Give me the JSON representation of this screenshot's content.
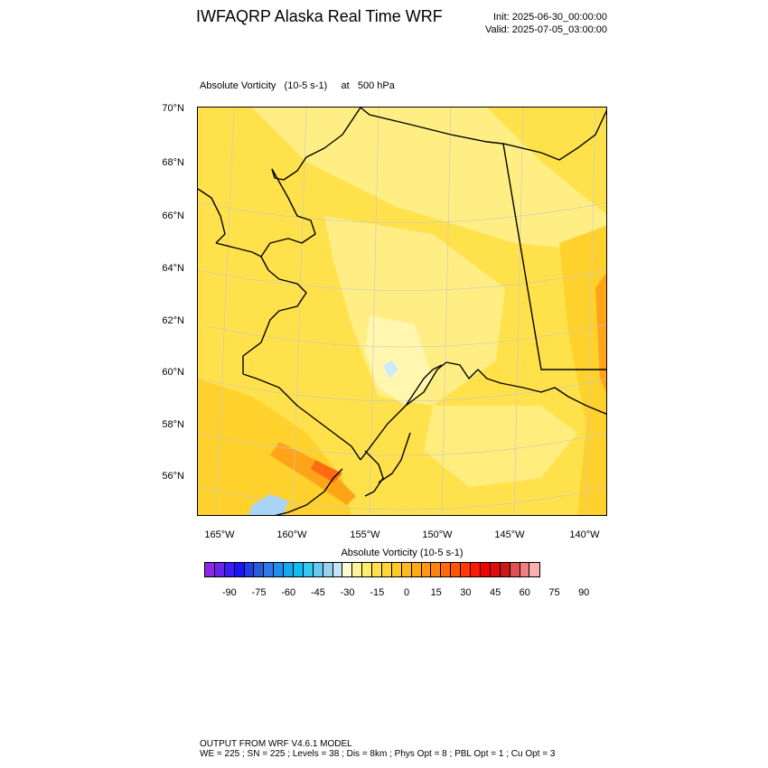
{
  "header": {
    "title": "IWFAQRP Alaska Real Time WRF",
    "init": "Init: 2025-06-30_00:00:00",
    "valid": "Valid: 2025-07-05_03:00:00"
  },
  "map": {
    "subtitle": "Absolute Vorticity   (10-5 s-1)     at   500 hPa",
    "lat_labels": [
      "70°N",
      "68°N",
      "66°N",
      "64°N",
      "62°N",
      "60°N",
      "58°N",
      "56°N"
    ],
    "lon_labels": [
      "165°W",
      "160°W",
      "155°W",
      "150°W",
      "145°W",
      "140°W"
    ],
    "field_colors": {
      "background": "#ffe14b",
      "light": "#fff08a",
      "pale": "#fff6b0",
      "gold": "#ffd12c",
      "orange": "#ffa319",
      "red_orange": "#ff6b12",
      "ice_blue": "#cfe9ff",
      "water_blue": "#a9d4f5",
      "grid": "#c8c8c8",
      "coast": "#000000"
    }
  },
  "legend": {
    "title": "Absolute Vorticity  (10-5 s-1)",
    "labels": [
      "-90",
      "-75",
      "-60",
      "-45",
      "-30",
      "-15",
      "0",
      "15",
      "30",
      "45",
      "60",
      "75",
      "90"
    ],
    "colors": [
      "#8a28e8",
      "#6a24f0",
      "#3d1cf7",
      "#1c14f8",
      "#1f3fe8",
      "#2a5bd8",
      "#3178ea",
      "#1e8ef0",
      "#16a8f0",
      "#0ebef2",
      "#36c8f5",
      "#68c8ee",
      "#97d3f0",
      "#c2e6f8",
      "#fffbd0",
      "#fff39a",
      "#ffec70",
      "#ffe14b",
      "#ffd633",
      "#ffc926",
      "#ffba1e",
      "#ffa917",
      "#ff9712",
      "#ff830e",
      "#ff6b0b",
      "#ff5508",
      "#ff3a06",
      "#ff1a03",
      "#f40000",
      "#de0c0c",
      "#c91818",
      "#e05050",
      "#f08080",
      "#f8b0b0"
    ]
  },
  "footer": {
    "line1": "OUTPUT FROM WRF V4.6.1 MODEL",
    "line2": "WE = 225 ; SN = 225 ; Levels = 38 ; Dis = 8km ; Phys Opt = 8 ; PBL Opt = 1 ; Cu Opt = 3"
  }
}
